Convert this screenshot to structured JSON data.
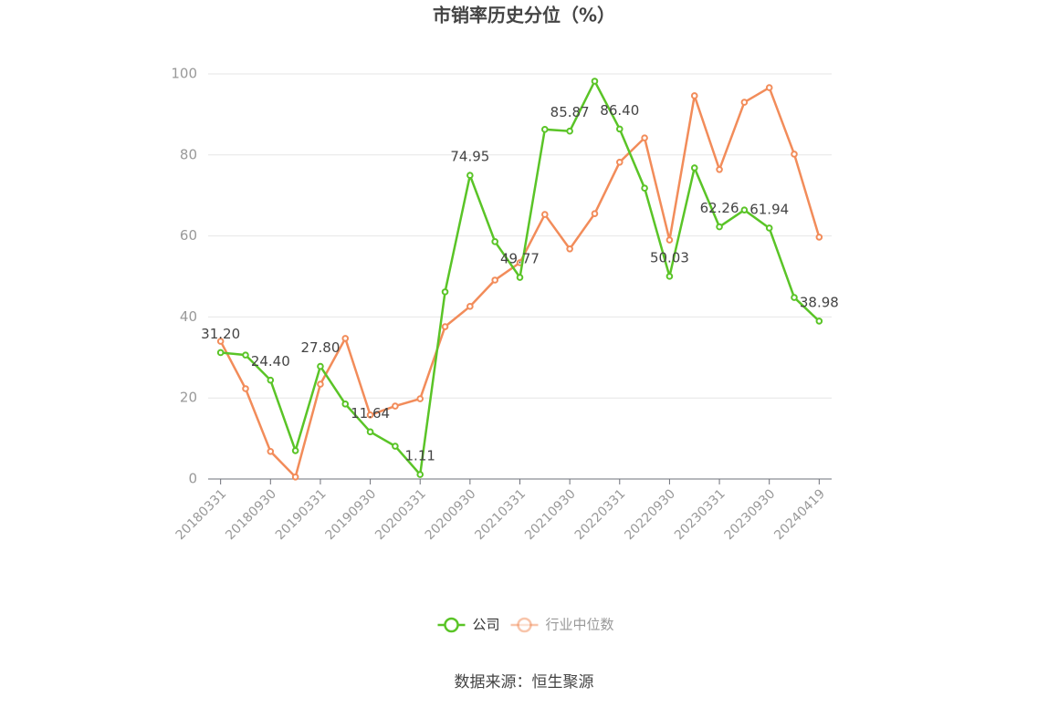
{
  "chart_data": {
    "type": "line",
    "title": "市销率历史分位（%）",
    "source": "数据来源：恒生聚源",
    "categories": [
      "20180331",
      null,
      "20180930",
      null,
      "20190331",
      null,
      "20190930",
      null,
      "20200331",
      null,
      "20200930",
      null,
      "20210331",
      null,
      "20210930",
      null,
      "20220331",
      null,
      "20220930",
      null,
      "20230331",
      null,
      "20230930",
      null,
      "20240419"
    ],
    "series": [
      {
        "name": "公司",
        "color": "#5ac427",
        "values": [
          31.2,
          30.6,
          24.4,
          7.0,
          27.8,
          18.5,
          11.64,
          8.1,
          1.11,
          46.2,
          74.95,
          58.6,
          49.77,
          86.3,
          85.87,
          98.2,
          86.4,
          71.8,
          50.03,
          76.8,
          62.26,
          66.4,
          61.94,
          44.8,
          38.98
        ],
        "value_labels": [
          "31.20",
          null,
          "24.40",
          null,
          "27.80",
          null,
          "11.64",
          null,
          "1.11",
          null,
          "74.95",
          null,
          "49.77",
          null,
          "85.87",
          null,
          "86.40",
          null,
          "50.03",
          null,
          "62.26",
          null,
          "61.94",
          null,
          "38.98"
        ]
      },
      {
        "name": "行业中位数",
        "color": "#f28c5a",
        "values": [
          34.0,
          22.3,
          6.8,
          0.5,
          23.4,
          34.7,
          15.8,
          18.0,
          19.8,
          37.6,
          42.6,
          49.1,
          53.4,
          65.3,
          56.8,
          65.5,
          78.2,
          84.2,
          59.0,
          94.6,
          76.4,
          93.0,
          96.6,
          80.2,
          59.7
        ]
      }
    ],
    "ylim": [
      0,
      100
    ],
    "yticks": [
      0,
      20,
      40,
      60,
      80,
      100
    ],
    "grid": true
  }
}
